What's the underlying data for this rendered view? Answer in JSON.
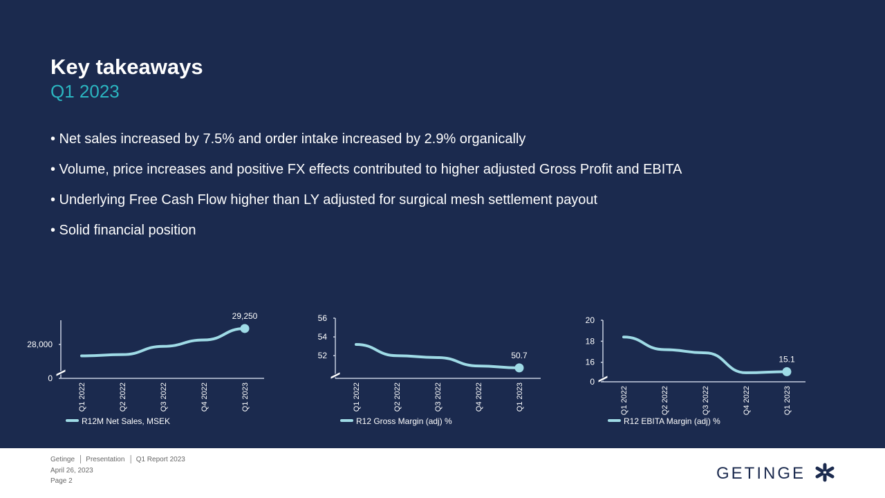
{
  "header": {
    "title": "Key takeaways",
    "subtitle": "Q1 2023"
  },
  "bullets": [
    "Net sales increased by 7.5% and order intake increased by 2.9% organically",
    "Volume, price increases and positive FX effects contributed to higher adjusted Gross Profit and EBITA",
    "Underlying Free Cash Flow higher than LY adjusted for surgical mesh settlement payout",
    "Solid financial position"
  ],
  "chart_data": [
    {
      "type": "line",
      "categories": [
        "Q1 2022",
        "Q2 2022",
        "Q3 2022",
        "Q4 2022",
        "Q1 2023"
      ],
      "series": [
        {
          "name": "R12M Net Sales, MSEK",
          "color": "#9fdbe6",
          "values": [
            27100,
            27200,
            27850,
            28350,
            29250
          ],
          "value_labels": [
            null,
            null,
            null,
            null,
            "29,250"
          ]
        }
      ],
      "ylim": [
        26150,
        29900
      ],
      "yticks": [
        0,
        {
          "value": 28000,
          "label": "28,000"
        }
      ],
      "axis_break": true
    },
    {
      "type": "line",
      "categories": [
        "Q1 2022",
        "Q2 2022",
        "Q3 2022",
        "Q4 2022",
        "Q1 2023"
      ],
      "series": [
        {
          "name": "R12 Gross Margin (adj) %",
          "color": "#9fdbe6",
          "values": [
            53.2,
            52.0,
            51.8,
            50.9,
            50.7
          ],
          "value_labels": [
            null,
            null,
            null,
            null,
            "50.7"
          ]
        }
      ],
      "ylim": [
        50.1,
        56
      ],
      "yticks": [
        52,
        54,
        56
      ],
      "axis_break": true
    },
    {
      "type": "line",
      "categories": [
        "Q1 2022",
        "Q2 2022",
        "Q3 2022",
        "Q4 2022",
        "Q1 2023"
      ],
      "series": [
        {
          "name": "R12 EBITA Margin (adj) %",
          "color": "#9fdbe6",
          "values": [
            18.4,
            17.2,
            16.9,
            15.0,
            15.1
          ],
          "value_labels": [
            null,
            null,
            null,
            null,
            "15.1"
          ]
        }
      ],
      "ylim": [
        14.6,
        20
      ],
      "yticks": [
        0,
        16,
        18,
        20
      ],
      "axis_break": true
    }
  ],
  "footer": {
    "items": [
      "Getinge",
      "Presentation",
      "Q1 Report 2023"
    ],
    "date": "April 26, 2023",
    "page": "Page 2",
    "logo": "GETINGE"
  }
}
